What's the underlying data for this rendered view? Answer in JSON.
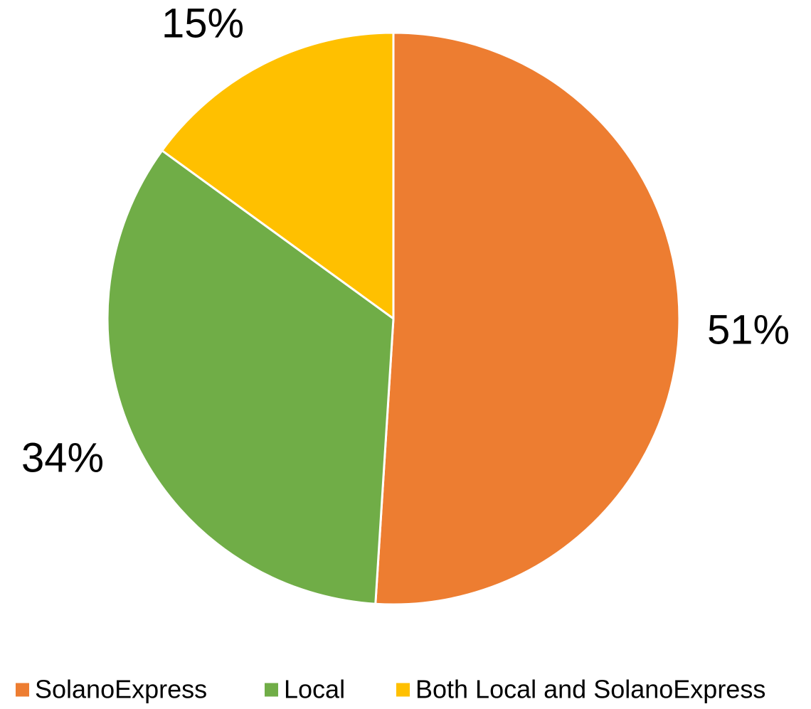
{
  "chart_data": {
    "type": "pie",
    "title": "",
    "slices": [
      {
        "label": "SolanoExpress",
        "value": 51,
        "display": "51%",
        "color": "#ED7D31"
      },
      {
        "label": "Local",
        "value": 34,
        "display": "34%",
        "color": "#70AD47"
      },
      {
        "label": "Both Local and SolanoExpress",
        "value": 15,
        "display": "15%",
        "color": "#FFC000"
      }
    ],
    "legend": {
      "placement": "bottom",
      "entries": [
        "SolanoExpress",
        "Local",
        "Both Local and SolanoExpress"
      ]
    }
  }
}
